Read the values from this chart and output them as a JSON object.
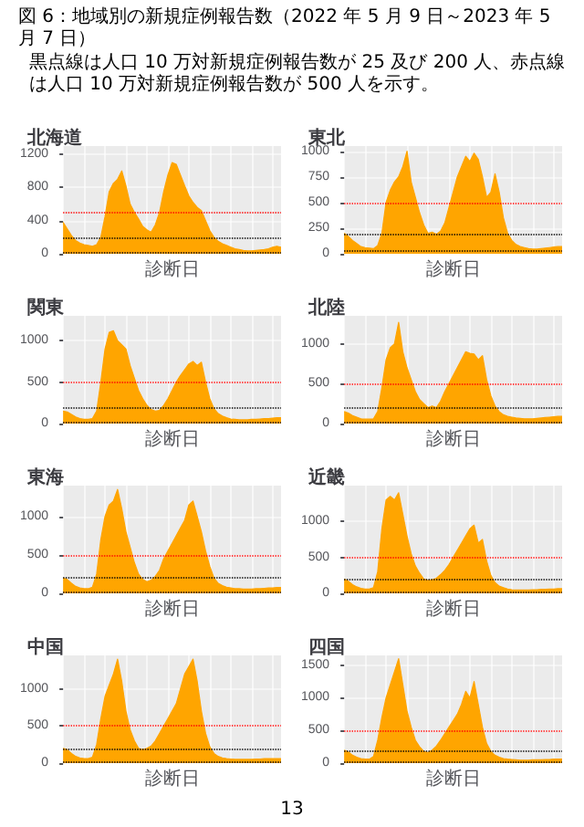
{
  "chart_data": [
    {
      "type": "other",
      "title": "図 6：地域別の新規症例報告数（2022 年 5 月 9 日～2023 年 5 月 7 日）",
      "subtitle": "黒点線は人口 10 万対新規症例報告数が 25 及び 200 人、赤点線は人口 10 万対新規症例報告数が 500 人を示す。",
      "annotations": [
        "13"
      ]
    },
    {
      "type": "area",
      "title": "北海道",
      "xlabel": "診断日",
      "ylim": [
        0,
        1300
      ],
      "yticks": [
        0,
        400,
        800,
        1200
      ],
      "grid": true,
      "tick_labels": "y",
      "categories": [
        null,
        null,
        null,
        null,
        null,
        null,
        null,
        null,
        null,
        null,
        null,
        null,
        null,
        null,
        null,
        null,
        null,
        null,
        null,
        null,
        null,
        null,
        null,
        null,
        null,
        null,
        null,
        null,
        null,
        null,
        null,
        null,
        null,
        null,
        null,
        null,
        null,
        null,
        null,
        null,
        null,
        null,
        null,
        null,
        null,
        null,
        null,
        null,
        null,
        null,
        null,
        null,
        null
      ],
      "series": [
        {
          "color": "#ffa500",
          "values": [
            380,
            300,
            220,
            160,
            130,
            110,
            100,
            90,
            110,
            200,
            450,
            750,
            850,
            900,
            1000,
            820,
            600,
            500,
            420,
            330,
            290,
            260,
            350,
            500,
            750,
            950,
            1100,
            1080,
            950,
            820,
            700,
            620,
            560,
            520,
            400,
            280,
            200,
            150,
            120,
            100,
            80,
            60,
            50,
            40,
            35,
            35,
            40,
            45,
            50,
            60,
            80,
            90,
            80
          ]
        }
      ],
      "ref_lines": [
        {
          "axis": "y",
          "value": 25,
          "color": "#000000",
          "line_style": "dotted"
        },
        {
          "axis": "y",
          "value": 200,
          "color": "#000000",
          "line_style": "dotted"
        },
        {
          "axis": "y",
          "value": 500,
          "color": "#ff0000",
          "line_style": "dotted"
        }
      ]
    },
    {
      "type": "area",
      "title": "東北",
      "xlabel": "診断日",
      "ylim": [
        0,
        1050
      ],
      "yticks": [
        0,
        250,
        500,
        750,
        1000
      ],
      "grid": true,
      "tick_labels": "y",
      "categories": [
        null,
        null,
        null,
        null,
        null,
        null,
        null,
        null,
        null,
        null,
        null,
        null,
        null,
        null,
        null,
        null,
        null,
        null,
        null,
        null,
        null,
        null,
        null,
        null,
        null,
        null,
        null,
        null,
        null,
        null,
        null,
        null,
        null,
        null,
        null,
        null,
        null,
        null,
        null,
        null,
        null,
        null,
        null,
        null,
        null,
        null,
        null,
        null,
        null,
        null,
        null,
        null,
        null
      ],
      "series": [
        {
          "color": "#ffa500",
          "values": [
            200,
            170,
            130,
            100,
            70,
            60,
            55,
            50,
            80,
            200,
            500,
            620,
            700,
            750,
            850,
            1000,
            700,
            550,
            400,
            280,
            200,
            210,
            190,
            220,
            300,
            450,
            600,
            750,
            850,
            950,
            900,
            980,
            920,
            750,
            550,
            600,
            780,
            600,
            350,
            200,
            130,
            90,
            70,
            60,
            50,
            45,
            45,
            50,
            55,
            60,
            65,
            70,
            70
          ]
        }
      ],
      "ref_lines": [
        {
          "axis": "y",
          "value": 25,
          "color": "#000000",
          "line_style": "dotted"
        },
        {
          "axis": "y",
          "value": 200,
          "color": "#000000",
          "line_style": "dotted"
        },
        {
          "axis": "y",
          "value": 500,
          "color": "#ff0000",
          "line_style": "dotted"
        }
      ]
    },
    {
      "type": "area",
      "title": "関東",
      "xlabel": "診断日",
      "ylim": [
        0,
        1300
      ],
      "yticks": [
        0,
        500,
        1000
      ],
      "grid": true,
      "tick_labels": "y",
      "categories": [
        null,
        null,
        null,
        null,
        null,
        null,
        null,
        null,
        null,
        null,
        null,
        null,
        null,
        null,
        null,
        null,
        null,
        null,
        null,
        null,
        null,
        null,
        null,
        null,
        null,
        null,
        null,
        null,
        null,
        null,
        null,
        null,
        null,
        null,
        null,
        null,
        null,
        null,
        null,
        null,
        null,
        null,
        null,
        null,
        null,
        null,
        null,
        null,
        null,
        null,
        null,
        null,
        null
      ],
      "series": [
        {
          "color": "#ffa500",
          "values": [
            150,
            140,
            110,
            80,
            60,
            50,
            50,
            60,
            150,
            500,
            900,
            1100,
            1120,
            1000,
            950,
            900,
            700,
            550,
            400,
            300,
            220,
            170,
            150,
            160,
            220,
            300,
            400,
            500,
            580,
            650,
            720,
            750,
            700,
            740,
            500,
            300,
            180,
            120,
            90,
            70,
            55,
            50,
            45,
            45,
            45,
            50,
            50,
            55,
            60,
            60,
            65,
            70,
            70
          ]
        }
      ],
      "ref_lines": [
        {
          "axis": "y",
          "value": 25,
          "color": "#000000",
          "line_style": "dotted"
        },
        {
          "axis": "y",
          "value": 200,
          "color": "#000000",
          "line_style": "dotted"
        },
        {
          "axis": "y",
          "value": 500,
          "color": "#ff0000",
          "line_style": "dotted"
        }
      ]
    },
    {
      "type": "area",
      "title": "北陸",
      "xlabel": "診断日",
      "ylim": [
        0,
        1350
      ],
      "yticks": [
        0,
        500,
        1000
      ],
      "grid": true,
      "tick_labels": "y",
      "categories": [
        null,
        null,
        null,
        null,
        null,
        null,
        null,
        null,
        null,
        null,
        null,
        null,
        null,
        null,
        null,
        null,
        null,
        null,
        null,
        null,
        null,
        null,
        null,
        null,
        null,
        null,
        null,
        null,
        null,
        null,
        null,
        null,
        null,
        null,
        null,
        null,
        null,
        null,
        null,
        null,
        null,
        null,
        null,
        null,
        null,
        null,
        null,
        null,
        null,
        null,
        null,
        null,
        null
      ],
      "series": [
        {
          "color": "#ffa500",
          "values": [
            150,
            130,
            100,
            80,
            60,
            55,
            55,
            60,
            150,
            450,
            800,
            950,
            1000,
            1270,
            900,
            700,
            550,
            400,
            300,
            250,
            200,
            220,
            200,
            280,
            400,
            500,
            600,
            700,
            800,
            900,
            880,
            870,
            800,
            850,
            550,
            350,
            220,
            150,
            110,
            90,
            80,
            70,
            65,
            60,
            60,
            60,
            65,
            70,
            75,
            80,
            85,
            90,
            90
          ]
        }
      ],
      "ref_lines": [
        {
          "axis": "y",
          "value": 25,
          "color": "#000000",
          "line_style": "dotted"
        },
        {
          "axis": "y",
          "value": 200,
          "color": "#000000",
          "line_style": "dotted"
        },
        {
          "axis": "y",
          "value": 500,
          "color": "#ff0000",
          "line_style": "dotted"
        }
      ]
    },
    {
      "type": "area",
      "title": "東海",
      "xlabel": "診断日",
      "ylim": [
        0,
        1400
      ],
      "yticks": [
        0,
        500,
        1000
      ],
      "grid": true,
      "tick_labels": "y",
      "categories": [
        null,
        null,
        null,
        null,
        null,
        null,
        null,
        null,
        null,
        null,
        null,
        null,
        null,
        null,
        null,
        null,
        null,
        null,
        null,
        null,
        null,
        null,
        null,
        null,
        null,
        null,
        null,
        null,
        null,
        null,
        null,
        null,
        null,
        null,
        null,
        null,
        null,
        null,
        null,
        null,
        null,
        null,
        null,
        null,
        null,
        null,
        null,
        null,
        null,
        null,
        null,
        null,
        null
      ],
      "series": [
        {
          "color": "#ffa500",
          "values": [
            200,
            180,
            130,
            90,
            70,
            60,
            60,
            80,
            250,
            700,
            1000,
            1150,
            1200,
            1350,
            1100,
            800,
            600,
            400,
            250,
            180,
            150,
            170,
            220,
            300,
            450,
            550,
            650,
            750,
            850,
            950,
            1150,
            1200,
            1000,
            800,
            550,
            350,
            200,
            130,
            100,
            80,
            70,
            60,
            60,
            55,
            55,
            55,
            60,
            60,
            65,
            70,
            70,
            75,
            75
          ]
        }
      ],
      "ref_lines": [
        {
          "axis": "y",
          "value": 25,
          "color": "#000000",
          "line_style": "dotted"
        },
        {
          "axis": "y",
          "value": 200,
          "color": "#000000",
          "line_style": "dotted"
        },
        {
          "axis": "y",
          "value": 500,
          "color": "#ff0000",
          "line_style": "dotted"
        }
      ]
    },
    {
      "type": "area",
      "title": "近畿",
      "xlabel": "診断日",
      "ylim": [
        0,
        1500
      ],
      "yticks": [
        0,
        500,
        1000
      ],
      "grid": true,
      "tick_labels": "y",
      "categories": [
        null,
        null,
        null,
        null,
        null,
        null,
        null,
        null,
        null,
        null,
        null,
        null,
        null,
        null,
        null,
        null,
        null,
        null,
        null,
        null,
        null,
        null,
        null,
        null,
        null,
        null,
        null,
        null,
        null,
        null,
        null,
        null,
        null,
        null,
        null,
        null,
        null,
        null,
        null,
        null,
        null,
        null,
        null,
        null,
        null,
        null,
        null,
        null,
        null,
        null,
        null,
        null,
        null
      ],
      "series": [
        {
          "color": "#ffa500",
          "values": [
            200,
            170,
            120,
            90,
            70,
            60,
            60,
            80,
            300,
            900,
            1300,
            1350,
            1300,
            1400,
            1100,
            800,
            550,
            380,
            280,
            200,
            180,
            190,
            210,
            260,
            320,
            400,
            500,
            600,
            700,
            800,
            900,
            950,
            700,
            750,
            450,
            250,
            150,
            100,
            80,
            60,
            50,
            45,
            45,
            45,
            45,
            50,
            50,
            55,
            55,
            60,
            60,
            65,
            65
          ]
        }
      ],
      "ref_lines": [
        {
          "axis": "y",
          "value": 25,
          "color": "#000000",
          "line_style": "dotted"
        },
        {
          "axis": "y",
          "value": 200,
          "color": "#000000",
          "line_style": "dotted"
        },
        {
          "axis": "y",
          "value": 500,
          "color": "#ff0000",
          "line_style": "dotted"
        }
      ]
    },
    {
      "type": "area",
      "title": "中国",
      "xlabel": "診断日",
      "ylim": [
        0,
        1450
      ],
      "yticks": [
        0,
        500,
        1000
      ],
      "grid": true,
      "tick_labels": "y",
      "categories": [
        null,
        null,
        null,
        null,
        null,
        null,
        null,
        null,
        null,
        null,
        null,
        null,
        null,
        null,
        null,
        null,
        null,
        null,
        null,
        null,
        null,
        null,
        null,
        null,
        null,
        null,
        null,
        null,
        null,
        null,
        null,
        null,
        null,
        null,
        null,
        null,
        null,
        null,
        null,
        null,
        null,
        null,
        null,
        null,
        null,
        null,
        null,
        null,
        null,
        null,
        null,
        null,
        null
      ],
      "series": [
        {
          "color": "#ffa500",
          "values": [
            200,
            180,
            130,
            90,
            70,
            60,
            60,
            80,
            250,
            600,
            900,
            1050,
            1200,
            1400,
            1100,
            700,
            450,
            300,
            200,
            180,
            200,
            230,
            300,
            400,
            500,
            600,
            700,
            800,
            1000,
            1200,
            1300,
            1400,
            1100,
            700,
            400,
            220,
            130,
            90,
            70,
            60,
            55,
            50,
            50,
            50,
            50,
            50,
            55,
            55,
            60,
            60,
            60,
            60,
            60
          ]
        }
      ],
      "ref_lines": [
        {
          "axis": "y",
          "value": 25,
          "color": "#000000",
          "line_style": "dotted"
        },
        {
          "axis": "y",
          "value": 200,
          "color": "#000000",
          "line_style": "dotted"
        },
        {
          "axis": "y",
          "value": 500,
          "color": "#ff0000",
          "line_style": "dotted"
        }
      ]
    },
    {
      "type": "area",
      "title": "四国",
      "xlabel": "診断日",
      "ylim": [
        0,
        1650
      ],
      "yticks": [
        0,
        500,
        1000,
        1500
      ],
      "grid": true,
      "tick_labels": "y",
      "categories": [
        null,
        null,
        null,
        null,
        null,
        null,
        null,
        null,
        null,
        null,
        null,
        null,
        null,
        null,
        null,
        null,
        null,
        null,
        null,
        null,
        null,
        null,
        null,
        null,
        null,
        null,
        null,
        null,
        null,
        null,
        null,
        null,
        null,
        null,
        null,
        null,
        null,
        null,
        null,
        null,
        null,
        null,
        null,
        null,
        null,
        null,
        null,
        null,
        null,
        null,
        null,
        null,
        null
      ],
      "series": [
        {
          "color": "#ffa500",
          "values": [
            200,
            170,
            120,
            90,
            70,
            60,
            60,
            100,
            350,
            700,
            1000,
            1200,
            1400,
            1600,
            1200,
            800,
            550,
            350,
            250,
            180,
            160,
            200,
            260,
            350,
            450,
            550,
            650,
            750,
            900,
            1100,
            1000,
            1250,
            900,
            550,
            300,
            180,
            120,
            90,
            70,
            60,
            55,
            50,
            45,
            45,
            45,
            50,
            50,
            50,
            55,
            55,
            60,
            60,
            60
          ]
        }
      ],
      "ref_lines": [
        {
          "axis": "y",
          "value": 25,
          "color": "#000000",
          "line_style": "dotted"
        },
        {
          "axis": "y",
          "value": 200,
          "color": "#000000",
          "line_style": "dotted"
        },
        {
          "axis": "y",
          "value": 500,
          "color": "#ff0000",
          "line_style": "dotted"
        }
      ]
    }
  ]
}
